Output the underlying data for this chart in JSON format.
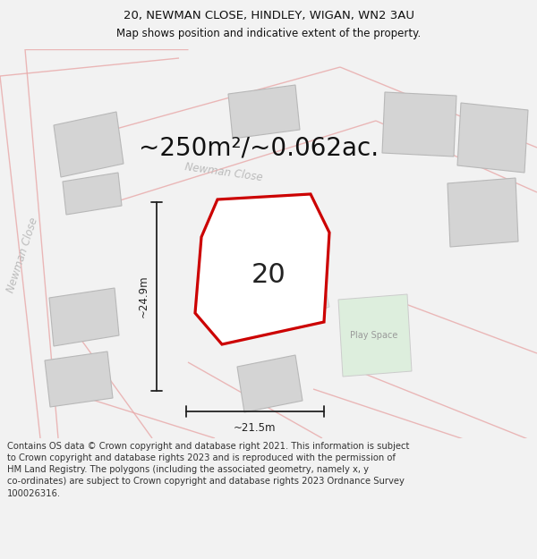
{
  "title": "20, NEWMAN CLOSE, HINDLEY, WIGAN, WN2 3AU",
  "subtitle": "Map shows position and indicative extent of the property.",
  "area_text": "~250m²/~0.062ac.",
  "width_label": "~21.5m",
  "height_label": "~24.9m",
  "number_label": "20",
  "play_space_label": "Play Space",
  "newman_close_label1": "Newman Close",
  "newman_close_label2": "Newman Close",
  "footer": "Contains OS data © Crown copyright and database right 2021. This information is subject\nto Crown copyright and database rights 2023 and is reproduced with the permission of\nHM Land Registry. The polygons (including the associated geometry, namely x, y\nco-ordinates) are subject to Crown copyright and database rights 2023 Ordnance Survey\n100026316.",
  "bg_color": "#f2f2f2",
  "map_bg": "#eeecec",
  "property_fill": "#ffffff",
  "property_edge": "#cc0000",
  "building_fill": "#d4d4d4",
  "building_edge": "#b8b8b8",
  "green_fill": "#ddeedd",
  "pink_edge": "#e8a8a8",
  "dim_line_color": "#222222",
  "road_label_color": "#bbbbbb",
  "footer_fontsize": 7.2,
  "title_fontsize": 9.5,
  "subtitle_fontsize": 8.5,
  "area_fontsize": 20,
  "number_fontsize": 22,
  "street_label_fontsize": 8.5
}
